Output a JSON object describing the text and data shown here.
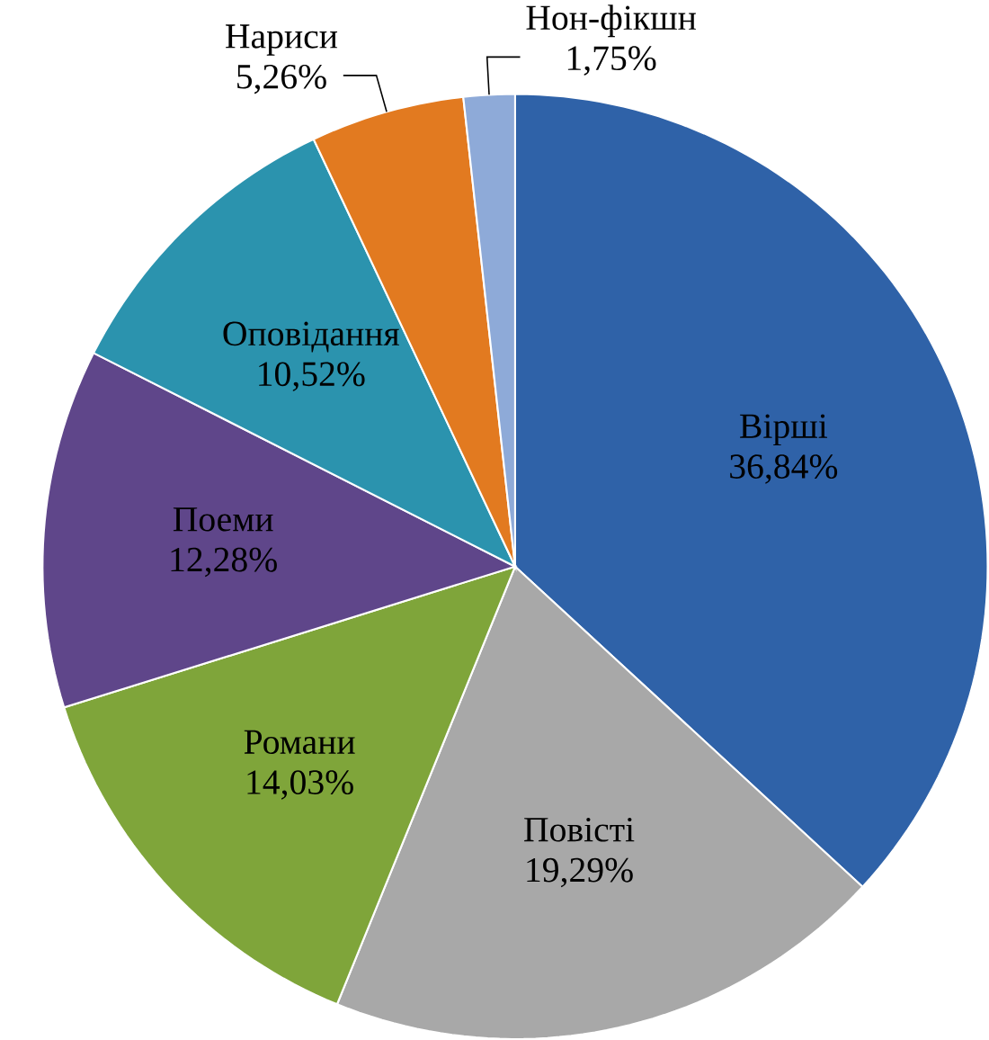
{
  "chart_data": {
    "type": "pie",
    "categories": [
      "Вірші",
      "Повісті",
      "Романи",
      "Поеми",
      "Оповідання",
      "Нариси",
      "Нон-фікшн"
    ],
    "values": [
      36.84,
      19.29,
      14.03,
      12.28,
      10.52,
      5.26,
      1.75
    ],
    "value_labels": [
      "36,84%",
      "19,29%",
      "14,03%",
      "12,28%",
      "10,52%",
      "5,26%",
      "1,75%"
    ],
    "colors": [
      "#2f62a8",
      "#a8a8a8",
      "#7fa53a",
      "#5f468a",
      "#2b93ae",
      "#e27a20",
      "#8eaad8"
    ]
  }
}
